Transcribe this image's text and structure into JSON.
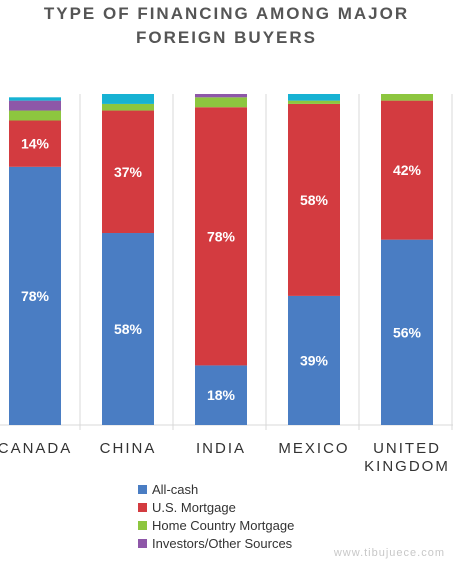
{
  "chart_data": {
    "type": "bar",
    "stacked": true,
    "title_lines": [
      "TYPE OF FINANCING AMONG MAJOR",
      "FOREIGN BUYERS"
    ],
    "categories": [
      "CANADA",
      "CHINA",
      "INDIA",
      "MEXICO",
      [
        "UNITED",
        "KINGDOM"
      ]
    ],
    "series": [
      {
        "name": "All-cash",
        "color": "#4a7dc3",
        "values": [
          78,
          58,
          18,
          39,
          56
        ],
        "labels": [
          "78%",
          "58%",
          "18%",
          "39%",
          "56%"
        ]
      },
      {
        "name": "U.S. Mortgage",
        "color": "#d33b40",
        "values": [
          14,
          37,
          78,
          58,
          42
        ],
        "labels": [
          "14%",
          "37%",
          "78%",
          "58%",
          "42%"
        ]
      },
      {
        "name": "Home Country Mortgage",
        "color": "#8dc63f",
        "values": [
          3,
          2,
          3,
          1,
          2
        ],
        "labels": [
          "",
          "",
          "",
          "",
          ""
        ]
      },
      {
        "name": "Investors/Other Sources",
        "color": "#8e57a8",
        "values": [
          3,
          0,
          1,
          0,
          0
        ],
        "labels": [
          "",
          "",
          "",
          "",
          ""
        ]
      },
      {
        "name": "",
        "color": "#17b2d3",
        "values": [
          1,
          3,
          0,
          2,
          0
        ],
        "labels": [
          "",
          "",
          "",
          "",
          ""
        ]
      }
    ],
    "ylim": [
      0,
      100
    ],
    "legend_position": "bottom"
  },
  "watermark": "www.tibujuece.com"
}
